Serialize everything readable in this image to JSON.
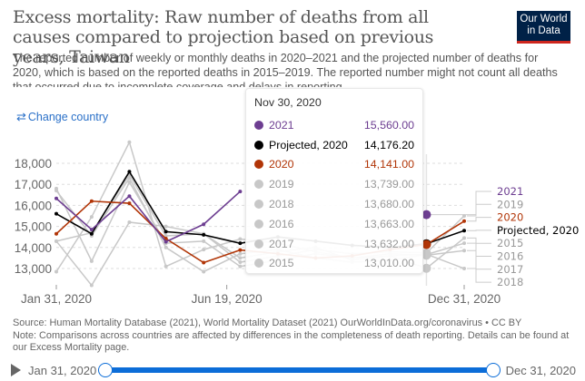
{
  "header": {
    "title": "Excess mortality: Raw number of deaths from all causes compared to projection based on previous years, Taiwan",
    "subtitle": "The reported number of weekly or monthly deaths in 2020–2021 and the projected number of deaths for 2020, which is based on the reported deaths in 2015–2019. The reported number might not count all deaths that occurred due to incomplete coverage and delays in reporting.",
    "logo_line1": "Our World",
    "logo_line2": "in Data"
  },
  "controls": {
    "change_country_label": "Change country",
    "change_country_icon": "swap-arrows-icon"
  },
  "tooltip": {
    "date": "Nov 30, 2020",
    "rows": [
      {
        "name": "2021",
        "value": "15,560.00",
        "color": "#6d3e91",
        "text_color": "#6d3e91"
      },
      {
        "name": "Projected, 2020",
        "value": "14,176.20",
        "color": "#000000",
        "text_color": "#000000"
      },
      {
        "name": "2020",
        "value": "14,141.00",
        "color": "#b13507",
        "text_color": "#b13507"
      },
      {
        "name": "2019",
        "value": "13,739.00",
        "color": "#c8c8c8",
        "text_color": "#999999"
      },
      {
        "name": "2018",
        "value": "13,680.00",
        "color": "#c8c8c8",
        "text_color": "#999999"
      },
      {
        "name": "2016",
        "value": "13,663.00",
        "color": "#c8c8c8",
        "text_color": "#999999"
      },
      {
        "name": "2017",
        "value": "13,632.00",
        "color": "#c8c8c8",
        "text_color": "#999999"
      },
      {
        "name": "2015",
        "value": "13,010.00",
        "color": "#c8c8c8",
        "text_color": "#999999"
      }
    ]
  },
  "chart_data": {
    "type": "line",
    "title": "Excess mortality: Raw number of deaths from all causes compared to projection based on previous years, Taiwan",
    "xlabel": "",
    "ylabel": "",
    "x": [
      "Jan 31, 2020",
      "Feb 29, 2020",
      "Mar 31, 2020",
      "Apr 30, 2020",
      "May 31, 2020",
      "Jun 30, 2020",
      "Jul 31, 2020",
      "Aug 31, 2020",
      "Sep 30, 2020",
      "Oct 31, 2020",
      "Nov 30, 2020",
      "Dec 31, 2020"
    ],
    "x_days": [
      0,
      29,
      60,
      90,
      121,
      151,
      182,
      213,
      243,
      274,
      304,
      335
    ],
    "x_ticks": [
      {
        "label": "Jan 31, 2020",
        "day": 0
      },
      {
        "label": "Jun 19, 2020",
        "day": 140
      },
      {
        "label": "Dec 31, 2020",
        "day": 335
      }
    ],
    "y_ticks": [
      13000,
      14000,
      15000,
      16000,
      17000,
      18000
    ],
    "y_tick_labels": [
      "13,000",
      "14,000",
      "15,000",
      "16,000",
      "17,000",
      "18,000"
    ],
    "ylim": [
      12000,
      18000
    ],
    "grid": true,
    "hover_day": 304,
    "legend_position": "right",
    "series": [
      {
        "name": "2015",
        "color": "#c8c8c8",
        "label_color": "#999999",
        "values": [
          14300,
          12200,
          15200,
          15000,
          14650,
          13500,
          13800,
          14000,
          13400,
          13600,
          13010,
          14450
        ]
      },
      {
        "name": "2016",
        "color": "#c8c8c8",
        "label_color": "#999999",
        "values": [
          16700,
          14550,
          17300,
          14000,
          12850,
          13700,
          13900,
          13500,
          13300,
          13400,
          13663,
          14200
        ]
      },
      {
        "name": "2017",
        "color": "#c8c8c8",
        "label_color": "#999999",
        "values": [
          12850,
          15450,
          19000,
          13100,
          13900,
          14400,
          14200,
          13800,
          13500,
          13700,
          13632,
          13850
        ]
      },
      {
        "name": "2018",
        "color": "#c8c8c8",
        "label_color": "#999999",
        "values": [
          16800,
          13350,
          17100,
          14200,
          14300,
          13100,
          13400,
          13700,
          13500,
          13600,
          13680,
          13000
        ]
      },
      {
        "name": "2019",
        "color": "#c8c8c8",
        "label_color": "#999999",
        "values": [
          14300,
          14700,
          17450,
          14550,
          14650,
          13300,
          13600,
          13900,
          13700,
          13800,
          13739,
          15500
        ]
      },
      {
        "name": "Projected, 2020",
        "color": "#000000",
        "label_color": "#000000",
        "values": [
          15600,
          14650,
          17600,
          14750,
          14600,
          14200,
          14500,
          14300,
          14100,
          14000,
          14176,
          14800
        ]
      },
      {
        "name": "2020",
        "color": "#b13507",
        "label_color": "#b13507",
        "values": [
          14650,
          16200,
          16100,
          14420,
          13280,
          13880,
          13700,
          13500,
          13600,
          13900,
          14141,
          15250
        ]
      },
      {
        "name": "2021",
        "color": "#6d3e91",
        "label_color": "#6d3e91",
        "values": [
          16330,
          14850,
          16440,
          14270,
          15100,
          16660,
          null,
          null,
          null,
          null,
          15560,
          null
        ]
      }
    ],
    "legend_order": [
      "2021",
      "2019",
      "2020",
      "Projected, 2020",
      "2015",
      "2016",
      "2017",
      "2018"
    ]
  },
  "footer": {
    "source": "Source: Human Mortality Database (2021), World Mortality Dataset (2021) OurWorldInData.org/coronavirus • CC BY",
    "note": "Note: Comparisons across countries are affected by differences in the completeness of death reporting. Details can be found at our Excess Mortality page."
  },
  "timeline": {
    "start_label": "Jan 31, 2020",
    "end_label": "Dec 31, 2020",
    "play_icon": "play-icon"
  }
}
